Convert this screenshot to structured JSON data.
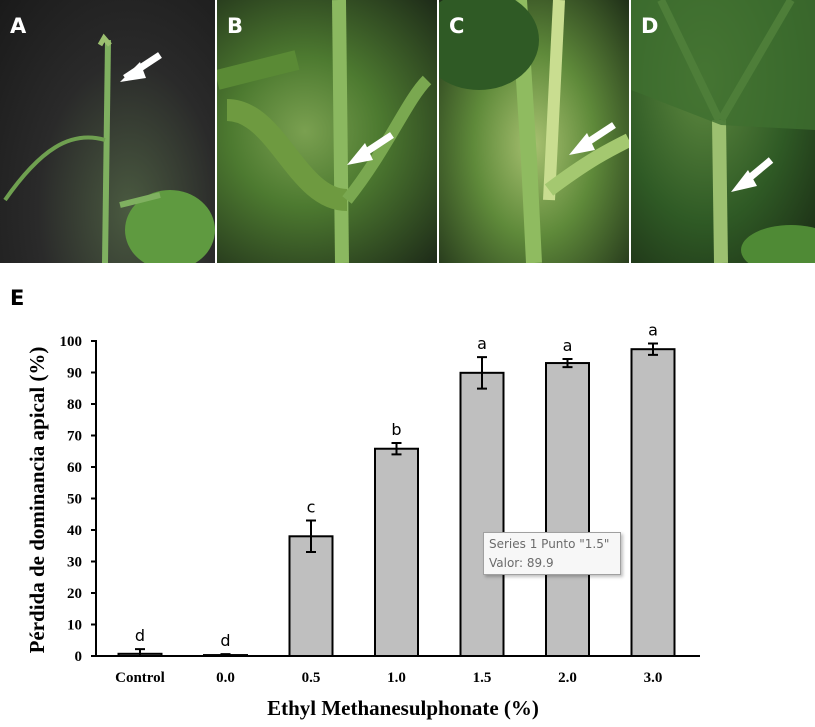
{
  "photos": [
    {
      "label": "A",
      "arrow": "arrow-icon"
    },
    {
      "label": "B",
      "arrow": "arrow-icon"
    },
    {
      "label": "C",
      "arrow": "arrow-icon"
    },
    {
      "label": "D",
      "arrow": "arrow-icon"
    }
  ],
  "panel_label": "E",
  "tooltip": {
    "line1": "Series 1 Punto \"1.5\"",
    "line2": "Valor: 89.9"
  },
  "chart_data": {
    "type": "bar",
    "title": "",
    "xlabel": "Ethyl Methanesulphonate (%)",
    "ylabel": "Pérdida de dominancia apical (%)",
    "ylim": [
      0,
      100
    ],
    "yticks": [
      0,
      10,
      20,
      30,
      40,
      50,
      60,
      70,
      80,
      90,
      100
    ],
    "grid": false,
    "categories": [
      "Control",
      "0.0",
      "0.5",
      "1.0",
      "1.5",
      "2.0",
      "3.0"
    ],
    "series": [
      {
        "name": "Series 1",
        "values": [
          0.7,
          0.3,
          38,
          65.8,
          89.9,
          93,
          97.4
        ],
        "errors": [
          1.5,
          0.3,
          5,
          1.8,
          5,
          1.3,
          1.8
        ],
        "letters": [
          "d",
          "d",
          "c",
          "b",
          "a",
          "a",
          "a"
        ]
      }
    ],
    "bar_color": "#bfbfbf"
  }
}
